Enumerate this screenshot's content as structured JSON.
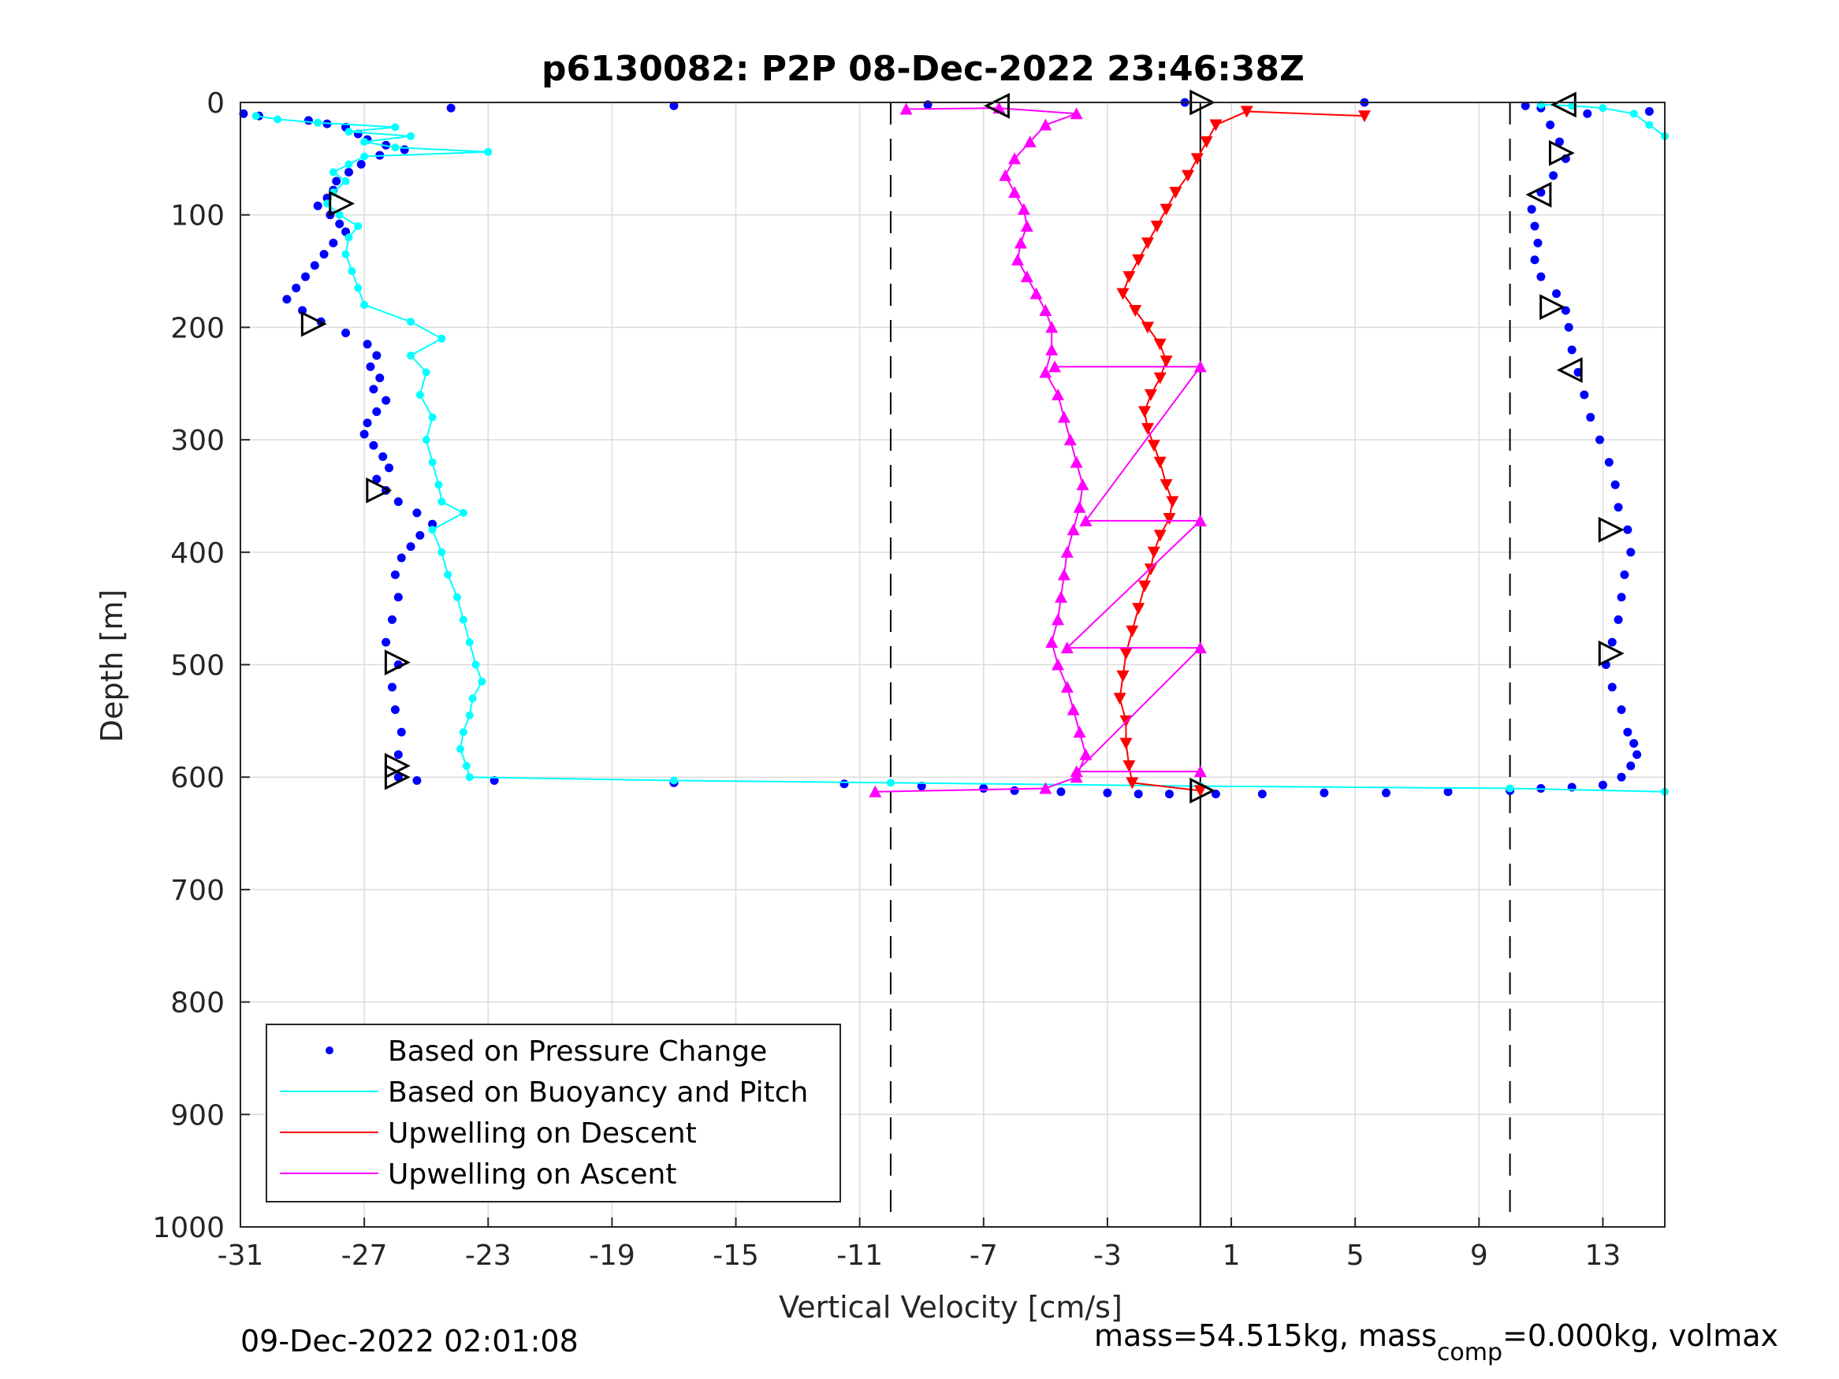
{
  "chart_data": {
    "type": "scatter",
    "title": "p6130082: P2P 08-Dec-2022 23:46:38Z",
    "xlabel": "Vertical Velocity [cm/s]",
    "ylabel": "Depth [m]",
    "xlim": [
      -31,
      15
    ],
    "ylim": [
      0,
      1000
    ],
    "y_reversed": true,
    "grid": true,
    "xticks": [
      -31,
      -27,
      -23,
      -19,
      -15,
      -11,
      -7,
      -3,
      1,
      5,
      9,
      13
    ],
    "yticks": [
      0,
      100,
      200,
      300,
      400,
      500,
      600,
      700,
      800,
      900,
      1000
    ],
    "reference_lines": {
      "solid_x": 0,
      "dashed_x": [
        -10,
        10
      ]
    },
    "legend": {
      "placement": "lower-left",
      "entries": [
        {
          "label": "Based on Pressure Change",
          "color": "#0000ff",
          "style": "dots"
        },
        {
          "label": "Based on Buoyancy and Pitch",
          "color": "#00ffff",
          "style": "line"
        },
        {
          "label": "Upwelling on Descent",
          "color": "#ff0000",
          "style": "line"
        },
        {
          "label": "Upwelling on Ascent",
          "color": "#ff00ff",
          "style": "line"
        }
      ]
    },
    "series": [
      {
        "name": "Based on Pressure Change (descent)",
        "color": "#0000ff",
        "marker": "dot",
        "points": [
          [
            -30.9,
            10
          ],
          [
            -30.4,
            12
          ],
          [
            -28.8,
            16
          ],
          [
            -28.2,
            19
          ],
          [
            -27.6,
            22
          ],
          [
            -27.2,
            28
          ],
          [
            -26.9,
            33
          ],
          [
            -26.3,
            38
          ],
          [
            -25.7,
            42
          ],
          [
            -26.5,
            47
          ],
          [
            -27.1,
            55
          ],
          [
            -27.5,
            62
          ],
          [
            -27.9,
            70
          ],
          [
            -28.0,
            78
          ],
          [
            -28.2,
            85
          ],
          [
            -28.5,
            92
          ],
          [
            -28.1,
            100
          ],
          [
            -27.8,
            108
          ],
          [
            -27.6,
            115
          ],
          [
            -28.0,
            125
          ],
          [
            -28.3,
            135
          ],
          [
            -28.6,
            145
          ],
          [
            -28.9,
            155
          ],
          [
            -29.2,
            165
          ],
          [
            -29.5,
            175
          ],
          [
            -29.0,
            185
          ],
          [
            -28.4,
            195
          ],
          [
            -27.6,
            205
          ],
          [
            -26.9,
            215
          ],
          [
            -26.6,
            225
          ],
          [
            -26.8,
            235
          ],
          [
            -26.5,
            245
          ],
          [
            -26.7,
            255
          ],
          [
            -26.3,
            265
          ],
          [
            -26.6,
            275
          ],
          [
            -26.9,
            285
          ],
          [
            -27.0,
            295
          ],
          [
            -26.7,
            305
          ],
          [
            -26.4,
            315
          ],
          [
            -26.2,
            325
          ],
          [
            -26.6,
            335
          ],
          [
            -26.3,
            345
          ],
          [
            -25.9,
            355
          ],
          [
            -25.3,
            365
          ],
          [
            -24.8,
            375
          ],
          [
            -25.2,
            385
          ],
          [
            -25.5,
            395
          ],
          [
            -25.8,
            405
          ],
          [
            -26.0,
            420
          ],
          [
            -25.9,
            440
          ],
          [
            -26.1,
            460
          ],
          [
            -26.3,
            480
          ],
          [
            -25.9,
            500
          ],
          [
            -26.1,
            520
          ],
          [
            -26.0,
            540
          ],
          [
            -25.8,
            560
          ],
          [
            -25.9,
            580
          ],
          [
            -25.9,
            600
          ],
          [
            -25.3,
            603
          ],
          [
            -22.8,
            603
          ],
          [
            -17.0,
            605
          ],
          [
            -11.5,
            606
          ],
          [
            -9.0,
            608
          ],
          [
            -7.0,
            610
          ],
          [
            -6.0,
            612
          ],
          [
            -4.5,
            613
          ],
          [
            -3.0,
            614
          ],
          [
            -2.0,
            615
          ],
          [
            -1.0,
            615
          ],
          [
            0.5,
            615
          ],
          [
            2.0,
            615
          ],
          [
            4.0,
            614
          ],
          [
            6.0,
            614
          ],
          [
            8.0,
            613
          ],
          [
            10.0,
            612
          ],
          [
            11.0,
            610
          ],
          [
            12.0,
            609
          ],
          [
            13.0,
            607
          ]
        ]
      },
      {
        "name": "Based on Pressure Change (ascent)",
        "color": "#0000ff",
        "marker": "dot",
        "points": [
          [
            13.6,
            600
          ],
          [
            13.9,
            590
          ],
          [
            14.1,
            580
          ],
          [
            14.0,
            570
          ],
          [
            13.8,
            560
          ],
          [
            13.6,
            540
          ],
          [
            13.3,
            520
          ],
          [
            13.1,
            500
          ],
          [
            13.3,
            480
          ],
          [
            13.5,
            460
          ],
          [
            13.6,
            440
          ],
          [
            13.7,
            420
          ],
          [
            13.9,
            400
          ],
          [
            13.8,
            380
          ],
          [
            13.5,
            360
          ],
          [
            13.4,
            340
          ],
          [
            13.2,
            320
          ],
          [
            12.9,
            300
          ],
          [
            12.6,
            280
          ],
          [
            12.4,
            260
          ],
          [
            12.2,
            240
          ],
          [
            12.0,
            220
          ],
          [
            11.9,
            200
          ],
          [
            11.8,
            185
          ],
          [
            11.5,
            170
          ],
          [
            11.0,
            155
          ],
          [
            10.8,
            140
          ],
          [
            10.9,
            125
          ],
          [
            10.8,
            110
          ],
          [
            10.7,
            95
          ],
          [
            11.0,
            80
          ],
          [
            11.4,
            65
          ],
          [
            11.8,
            50
          ],
          [
            11.6,
            35
          ],
          [
            11.3,
            20
          ],
          [
            12.5,
            10
          ],
          [
            14.5,
            8
          ],
          [
            11.0,
            5
          ],
          [
            10.5,
            3
          ],
          [
            5.3,
            0
          ],
          [
            -0.5,
            0
          ],
          [
            -8.8,
            2
          ],
          [
            -17.0,
            3
          ],
          [
            -24.2,
            5
          ]
        ]
      },
      {
        "name": "Based on Buoyancy and Pitch (descent)",
        "color": "#00ffff",
        "marker": "line",
        "points": [
          [
            -30.5,
            12
          ],
          [
            -29.8,
            15
          ],
          [
            -28.5,
            18
          ],
          [
            -26.0,
            22
          ],
          [
            -27.5,
            26
          ],
          [
            -25.5,
            30
          ],
          [
            -27.0,
            35
          ],
          [
            -26.0,
            40
          ],
          [
            -23.0,
            44
          ],
          [
            -27.0,
            48
          ],
          [
            -27.5,
            55
          ],
          [
            -28.0,
            62
          ],
          [
            -27.6,
            70
          ],
          [
            -28.0,
            80
          ],
          [
            -28.2,
            90
          ],
          [
            -27.8,
            100
          ],
          [
            -27.2,
            110
          ],
          [
            -27.5,
            120
          ],
          [
            -27.6,
            135
          ],
          [
            -27.4,
            150
          ],
          [
            -27.2,
            165
          ],
          [
            -27.0,
            180
          ],
          [
            -25.5,
            195
          ],
          [
            -24.5,
            210
          ],
          [
            -25.5,
            225
          ],
          [
            -25.0,
            240
          ],
          [
            -25.2,
            260
          ],
          [
            -24.8,
            280
          ],
          [
            -25.0,
            300
          ],
          [
            -24.8,
            320
          ],
          [
            -24.6,
            340
          ],
          [
            -24.5,
            355
          ],
          [
            -23.8,
            365
          ],
          [
            -24.8,
            380
          ],
          [
            -24.5,
            400
          ],
          [
            -24.3,
            420
          ],
          [
            -24.0,
            440
          ],
          [
            -23.8,
            460
          ],
          [
            -23.6,
            480
          ],
          [
            -23.4,
            500
          ],
          [
            -23.2,
            515
          ],
          [
            -23.5,
            530
          ],
          [
            -23.6,
            545
          ],
          [
            -23.8,
            560
          ],
          [
            -23.9,
            575
          ],
          [
            -23.7,
            590
          ],
          [
            -23.6,
            600
          ],
          [
            -17.0,
            603
          ],
          [
            -10.0,
            605
          ],
          [
            0.0,
            608
          ],
          [
            10.0,
            610
          ],
          [
            15.0,
            613
          ]
        ]
      },
      {
        "name": "Based on Buoyancy and Pitch (ascent)",
        "color": "#00ffff",
        "marker": "line",
        "points": [
          [
            15.0,
            30
          ],
          [
            14.5,
            20
          ],
          [
            14.0,
            10
          ],
          [
            13.0,
            5
          ],
          [
            12.0,
            3
          ],
          [
            11.0,
            2
          ]
        ]
      },
      {
        "name": "Upwelling on Descent",
        "color": "#ff0000",
        "marker": "triangle-down",
        "points": [
          [
            5.3,
            12
          ],
          [
            1.5,
            8
          ],
          [
            0.5,
            20
          ],
          [
            0.2,
            35
          ],
          [
            -0.1,
            50
          ],
          [
            -0.4,
            65
          ],
          [
            -0.8,
            80
          ],
          [
            -1.1,
            95
          ],
          [
            -1.4,
            110
          ],
          [
            -1.7,
            125
          ],
          [
            -2.0,
            140
          ],
          [
            -2.3,
            155
          ],
          [
            -2.5,
            170
          ],
          [
            -2.1,
            185
          ],
          [
            -1.7,
            200
          ],
          [
            -1.3,
            215
          ],
          [
            -1.1,
            230
          ],
          [
            -1.3,
            245
          ],
          [
            -1.6,
            260
          ],
          [
            -1.8,
            275
          ],
          [
            -1.7,
            290
          ],
          [
            -1.5,
            305
          ],
          [
            -1.3,
            320
          ],
          [
            -1.1,
            340
          ],
          [
            -0.9,
            355
          ],
          [
            -1.0,
            370
          ],
          [
            -1.3,
            385
          ],
          [
            -1.5,
            400
          ],
          [
            -1.6,
            415
          ],
          [
            -1.8,
            430
          ],
          [
            -2.0,
            450
          ],
          [
            -2.2,
            470
          ],
          [
            -2.4,
            490
          ],
          [
            -2.5,
            510
          ],
          [
            -2.6,
            530
          ],
          [
            -2.4,
            550
          ],
          [
            -2.4,
            570
          ],
          [
            -2.3,
            590
          ],
          [
            -2.2,
            605
          ],
          [
            0.0,
            612
          ]
        ]
      },
      {
        "name": "Upwelling on Ascent",
        "color": "#ff00ff",
        "marker": "triangle-up",
        "points": [
          [
            -9.5,
            6
          ],
          [
            -6.5,
            5
          ],
          [
            -4.0,
            10
          ],
          [
            -5.0,
            20
          ],
          [
            -5.5,
            35
          ],
          [
            -6.0,
            50
          ],
          [
            -6.3,
            65
          ],
          [
            -6.0,
            80
          ],
          [
            -5.7,
            95
          ],
          [
            -5.6,
            110
          ],
          [
            -5.8,
            125
          ],
          [
            -5.9,
            140
          ],
          [
            -5.6,
            155
          ],
          [
            -5.3,
            170
          ],
          [
            -5.0,
            185
          ],
          [
            -4.8,
            200
          ],
          [
            -4.8,
            220
          ],
          [
            -5.0,
            240
          ],
          [
            -4.6,
            260
          ],
          [
            -4.4,
            280
          ],
          [
            -4.2,
            300
          ],
          [
            -4.0,
            320
          ],
          [
            -3.8,
            340
          ],
          [
            -3.9,
            360
          ],
          [
            -4.1,
            380
          ],
          [
            -4.3,
            400
          ],
          [
            -4.4,
            420
          ],
          [
            -4.5,
            440
          ],
          [
            -4.6,
            460
          ],
          [
            -4.8,
            480
          ],
          [
            -4.6,
            500
          ],
          [
            -4.3,
            520
          ],
          [
            -4.1,
            540
          ],
          [
            -3.9,
            560
          ],
          [
            -3.7,
            580
          ],
          [
            -4.0,
            600
          ],
          [
            -5.0,
            610
          ],
          [
            -10.5,
            613
          ]
        ]
      },
      {
        "name": "Upwelling on Ascent (bins)",
        "color": "#ff00ff",
        "marker": "triangle-up",
        "points": [
          [
            -4.7,
            235
          ],
          [
            0.0,
            235
          ],
          [
            -3.7,
            372
          ],
          [
            0.0,
            372
          ],
          [
            -4.3,
            485
          ],
          [
            0.0,
            485
          ],
          [
            -4.0,
            595
          ],
          [
            0.0,
            595
          ]
        ]
      }
    ],
    "markers": [
      {
        "shape": "triangle-right",
        "points": [
          [
            -27.8,
            90
          ],
          [
            -28.7,
            197
          ],
          [
            -26.6,
            345
          ],
          [
            -26.0,
            498
          ],
          [
            -26.0,
            590
          ],
          [
            -26.0,
            600
          ],
          [
            0.0,
            0
          ],
          [
            0.0,
            612
          ],
          [
            13.2,
            380
          ],
          [
            13.2,
            490
          ],
          [
            11.3,
            182
          ],
          [
            11.6,
            45
          ]
        ]
      },
      {
        "shape": "triangle-left",
        "points": [
          [
            -6.5,
            3
          ],
          [
            11.8,
            2
          ],
          [
            11.0,
            82
          ],
          [
            12.0,
            238
          ]
        ]
      }
    ]
  },
  "footer": {
    "left_timestamp": "09-Dec-2022 02:01:08",
    "right_prefix": "mass=54.515kg, mass",
    "right_sub": "comp",
    "right_suffix": "=0.000kg, volmax"
  }
}
